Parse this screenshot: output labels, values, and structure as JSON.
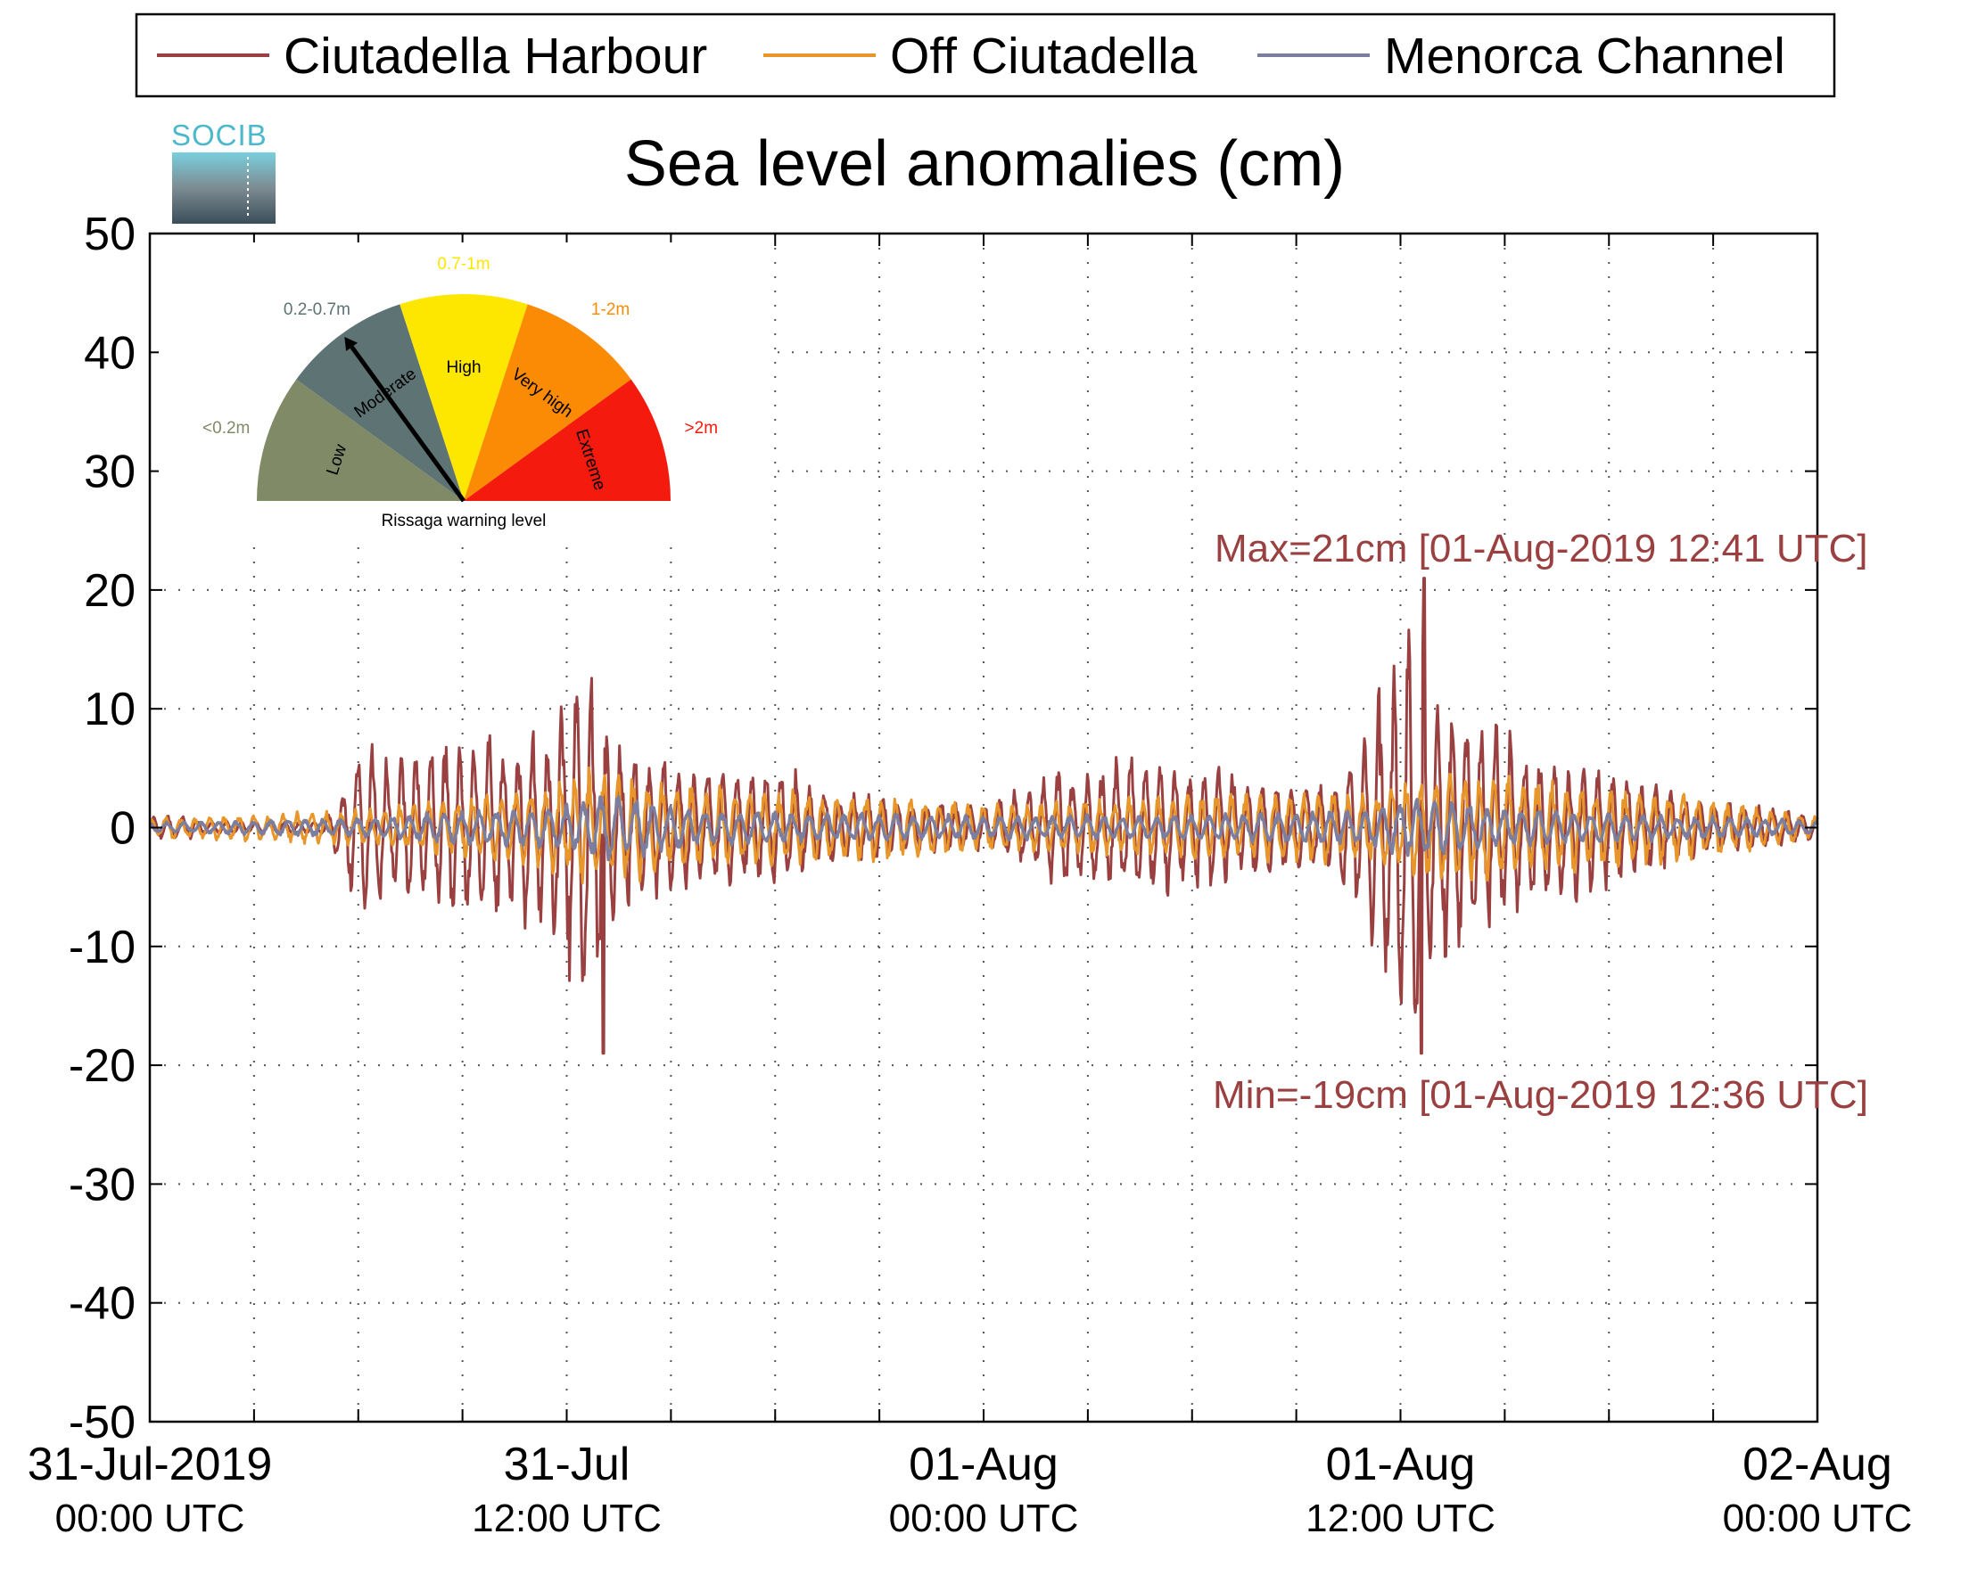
{
  "chart_data": {
    "type": "line",
    "title": "Sea level anomalies (cm)",
    "ylim": [
      -50,
      50
    ],
    "yticks": [
      50,
      40,
      30,
      20,
      10,
      0,
      -10,
      -20,
      -30,
      -40,
      -50
    ],
    "xlim_hours": [
      0,
      48
    ],
    "xticks": [
      {
        "hour": 0,
        "date": "31-Jul-2019",
        "time": "00:00 UTC"
      },
      {
        "hour": 12,
        "date": "31-Jul",
        "time": "12:00 UTC"
      },
      {
        "hour": 24,
        "date": "01-Aug",
        "time": "00:00 UTC"
      },
      {
        "hour": 36,
        "date": "01-Aug",
        "time": "12:00 UTC"
      },
      {
        "hour": 48,
        "date": "02-Aug",
        "time": "00:00 UTC"
      }
    ],
    "grid": "dotted",
    "legend_position": "top",
    "series": [
      {
        "name": "Ciutadella Harbour",
        "color": "#9b4040",
        "x": [
          0,
          1,
          2,
          3,
          4,
          5,
          6,
          6.5,
          7,
          8,
          9,
          10,
          11,
          12,
          12.5,
          13,
          14,
          15,
          16,
          17,
          18,
          19,
          20,
          21,
          22,
          23,
          24,
          25,
          26,
          27,
          28,
          29,
          30,
          31,
          32,
          33,
          34,
          35,
          36,
          36.3,
          36.6,
          37,
          38,
          39,
          40,
          41,
          42,
          43,
          44,
          45,
          46,
          47,
          48
        ],
        "amp": [
          1,
          1,
          0.5,
          0.5,
          0.5,
          0.5,
          6.5,
          7,
          6,
          7,
          8,
          8,
          8,
          11,
          18,
          10,
          6,
          6,
          5,
          5,
          5,
          4,
          3,
          3,
          2,
          2,
          2,
          3,
          5,
          5,
          6,
          6,
          5,
          5,
          4,
          4,
          4,
          8,
          16,
          20,
          20,
          12,
          10,
          8,
          6,
          6,
          5,
          4,
          3,
          2,
          2,
          1.5,
          1
        ]
      },
      {
        "name": "Off Ciutadella",
        "color": "#e8962a",
        "x": [
          0,
          6,
          9,
          12,
          13,
          16,
          20,
          24,
          28,
          32,
          35,
          36,
          37,
          38,
          40,
          42,
          44,
          46,
          48
        ],
        "amp": [
          0.8,
          1.5,
          2.5,
          4,
          5,
          3.5,
          3,
          2,
          2.5,
          3,
          3,
          4,
          5,
          5,
          4,
          3.5,
          3,
          2,
          1
        ]
      },
      {
        "name": "Menorca Channel",
        "color": "#7b7e9e",
        "x": [
          0,
          6,
          12,
          13,
          16,
          20,
          24,
          28,
          32,
          35,
          36,
          37,
          38,
          40,
          44,
          48
        ],
        "amp": [
          0.4,
          0.8,
          2,
          3,
          1.5,
          1.2,
          1,
          1,
          1.2,
          1.5,
          2.5,
          2.5,
          2,
          1.5,
          1,
          0.6
        ]
      }
    ],
    "annotations": {
      "max": "Max=21cm [01-Aug-2019 12:41 UTC]",
      "min": "Min=-19cm [01-Aug-2019 12:36 UTC]"
    },
    "inset_gauge": {
      "caption": "Rissaga warning level",
      "needle_level": "Moderate",
      "segments": [
        {
          "range": "<0.2m",
          "name": "Low",
          "color": "#818a67"
        },
        {
          "range": "0.2-0.7m",
          "name": "Moderate",
          "color": "#5e7373"
        },
        {
          "range": "0.7-1m",
          "name": "High",
          "color": "#fde600"
        },
        {
          "range": "1-2m",
          "name": "Very high",
          "color": "#fb8a04"
        },
        {
          "range": ">2m",
          "name": "Extreme",
          "color": "#f41a0e"
        }
      ]
    },
    "logo": "SOCIB"
  }
}
